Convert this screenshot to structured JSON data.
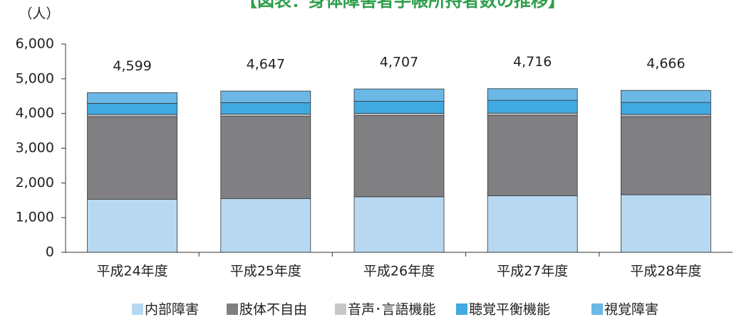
{
  "chart_data": {
    "type": "stacked_bar",
    "title": "【図表：身体障害者手帳所持者数の推移】",
    "y_label": "（人）",
    "categories": [
      "平成24年度",
      "平成25年度",
      "平成26年度",
      "平成27年度",
      "平成28年度"
    ],
    "series": [
      {
        "name": "内部障害",
        "color": "#b7d8f0",
        "values": [
          1530,
          1550,
          1600,
          1630,
          1660
        ]
      },
      {
        "name": "肢体不自由",
        "color": "#808083",
        "values": [
          2380,
          2370,
          2340,
          2320,
          2250
        ]
      },
      {
        "name": "音声･言語機能",
        "color": "#c8c8c8",
        "values": [
          60,
          60,
          60,
          60,
          60
        ]
      },
      {
        "name": "聴覚平衡機能",
        "color": "#3fa9e0",
        "values": [
          320,
          330,
          350,
          370,
          350
        ]
      },
      {
        "name": "視覚障害",
        "color": "#6bb8e6",
        "values": [
          309,
          337,
          357,
          336,
          346
        ]
      }
    ],
    "totals": [
      4599,
      4647,
      4707,
      4716,
      4666
    ],
    "total_labels": [
      "4,599",
      "4,647",
      "4,707",
      "4,716",
      "4,666"
    ],
    "ylim": [
      0,
      6000
    ],
    "yticks": [
      0,
      {
        "value": 1000,
        "label": "1,000"
      },
      {
        "value": 2000,
        "label": "2,000"
      },
      {
        "value": 3000,
        "label": "3,000"
      },
      {
        "value": 4000,
        "label": "4,000"
      },
      {
        "value": 5000,
        "label": "5,000"
      },
      {
        "value": 6000,
        "label": "6,000"
      }
    ],
    "grid": false,
    "legend": "bottom"
  }
}
